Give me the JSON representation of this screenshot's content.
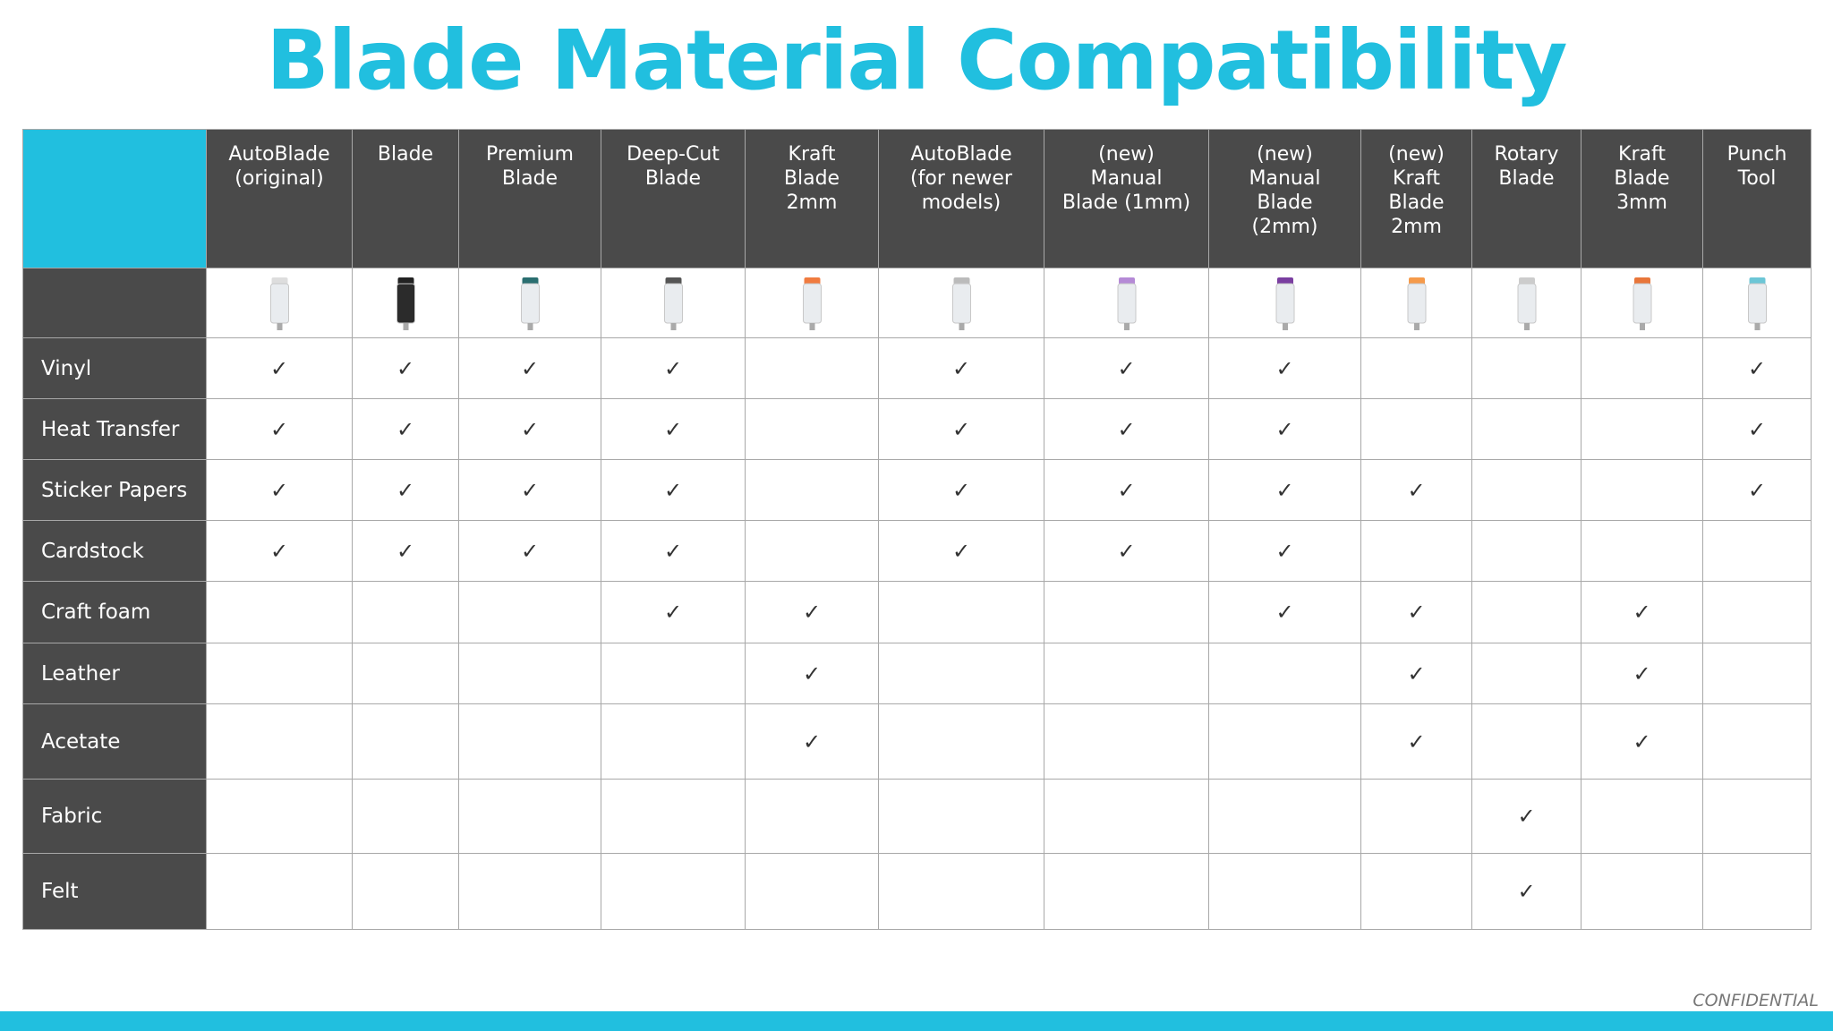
{
  "header": {
    "title": "Blade Material Compatibility"
  },
  "table": {
    "columns": [
      "AutoBlade\n(original)",
      "Blade",
      "Premium\nBlade",
      "Deep-Cut\nBlade",
      "Kraft\nBlade\n2mm",
      "AutoBlade\n(for newer\nmodels)",
      "(new)\nManual\nBlade (1mm)",
      "(new)\nManual\nBlade\n(2mm)",
      "(new)\nKraft\nBlade\n2mm",
      "Rotary\nBlade",
      "Kraft\nBlade\n3mm",
      "Punch\nTool"
    ],
    "rows": [
      {
        "label": "Vinyl",
        "cells": [
          "✓",
          "✓",
          "✓",
          "✓",
          null,
          "✓",
          "✓",
          "✓",
          null,
          null,
          null,
          "✓"
        ]
      },
      {
        "label": "Heat Transfer",
        "cells": [
          "✓",
          "✓",
          "✓",
          "✓",
          null,
          "✓",
          "✓",
          "✓",
          null,
          null,
          null,
          "✓"
        ]
      },
      {
        "label": "Sticker Papers",
        "cells": [
          "✓",
          "✓",
          "✓",
          "✓",
          null,
          "✓",
          "✓",
          "✓",
          "✓",
          null,
          null,
          "✓"
        ]
      },
      {
        "label": "Cardstock",
        "cells": [
          "✓",
          "✓",
          "✓",
          "✓",
          null,
          "✓",
          "✓",
          "✓",
          null,
          null,
          null,
          null
        ]
      },
      {
        "label": "Craft foam",
        "cells": [
          null,
          null,
          null,
          "✓",
          "✓",
          null,
          null,
          "✓",
          "✓",
          null,
          "✓",
          null
        ]
      },
      {
        "label": "Leather",
        "cells": [
          null,
          null,
          null,
          null,
          "✓",
          null,
          null,
          null,
          "✓",
          null,
          "✓",
          null
        ]
      },
      {
        "label": "Acetate",
        "cells": [
          null,
          null,
          null,
          null,
          "✓",
          null,
          null,
          null,
          "✓",
          null,
          "✓",
          null
        ]
      },
      {
        "label": "Fabric",
        "cells": [
          null,
          null,
          null,
          null,
          null,
          null,
          null,
          null,
          null,
          "✓",
          null,
          null
        ]
      },
      {
        "label": "Felt",
        "cells": [
          null,
          null,
          null,
          null,
          null,
          null,
          null,
          null,
          null,
          "✓",
          null,
          null
        ]
      }
    ]
  },
  "footer": {
    "note": "CONFIDENTIAL"
  }
}
